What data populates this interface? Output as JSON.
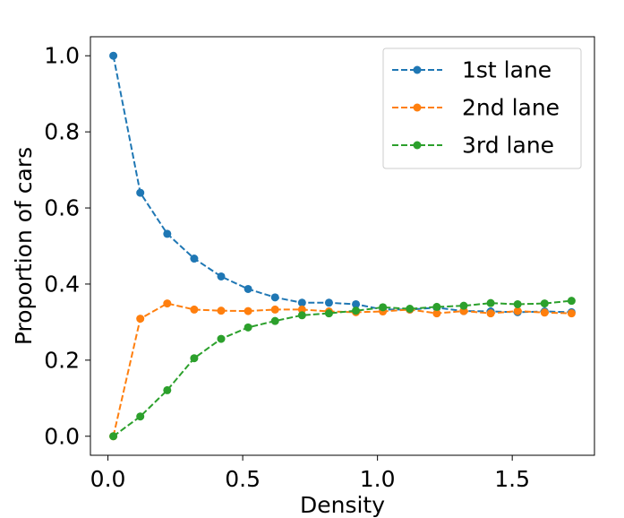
{
  "chart_data": {
    "type": "line",
    "title": "",
    "xlabel": "Density",
    "ylabel": "Proportion of cars",
    "xlim": [
      -0.065,
      1.805
    ],
    "ylim": [
      -0.05,
      1.05
    ],
    "xticks": [
      0.0,
      0.5,
      1.0,
      1.5
    ],
    "xtick_labels": [
      "0.0",
      "0.5",
      "1.0",
      "1.5"
    ],
    "yticks": [
      0.0,
      0.2,
      0.4,
      0.6,
      0.8,
      1.0
    ],
    "ytick_labels": [
      "0.0",
      "0.2",
      "0.4",
      "0.6",
      "0.8",
      "1.0"
    ],
    "grid": false,
    "legend_position": "top-right",
    "x": [
      0.02,
      0.12,
      0.22,
      0.32,
      0.42,
      0.52,
      0.62,
      0.72,
      0.82,
      0.92,
      1.02,
      1.12,
      1.22,
      1.32,
      1.42,
      1.52,
      1.62,
      1.72
    ],
    "series": [
      {
        "name": "1st lane",
        "color": "#1f77b4",
        "values": [
          1.0,
          0.64,
          0.532,
          0.467,
          0.42,
          0.387,
          0.365,
          0.351,
          0.351,
          0.347,
          0.333,
          0.333,
          0.338,
          0.329,
          0.328,
          0.326,
          0.328,
          0.326
        ]
      },
      {
        "name": "2nd lane",
        "color": "#ff7f0e",
        "values": [
          0.0,
          0.309,
          0.349,
          0.333,
          0.33,
          0.329,
          0.333,
          0.333,
          0.328,
          0.326,
          0.328,
          0.333,
          0.323,
          0.329,
          0.323,
          0.329,
          0.325,
          0.323
        ]
      },
      {
        "name": "3rd lane",
        "color": "#2ca02c",
        "values": [
          0.0,
          0.052,
          0.121,
          0.205,
          0.256,
          0.286,
          0.303,
          0.318,
          0.323,
          0.33,
          0.339,
          0.335,
          0.34,
          0.343,
          0.35,
          0.347,
          0.349,
          0.356
        ]
      }
    ]
  }
}
